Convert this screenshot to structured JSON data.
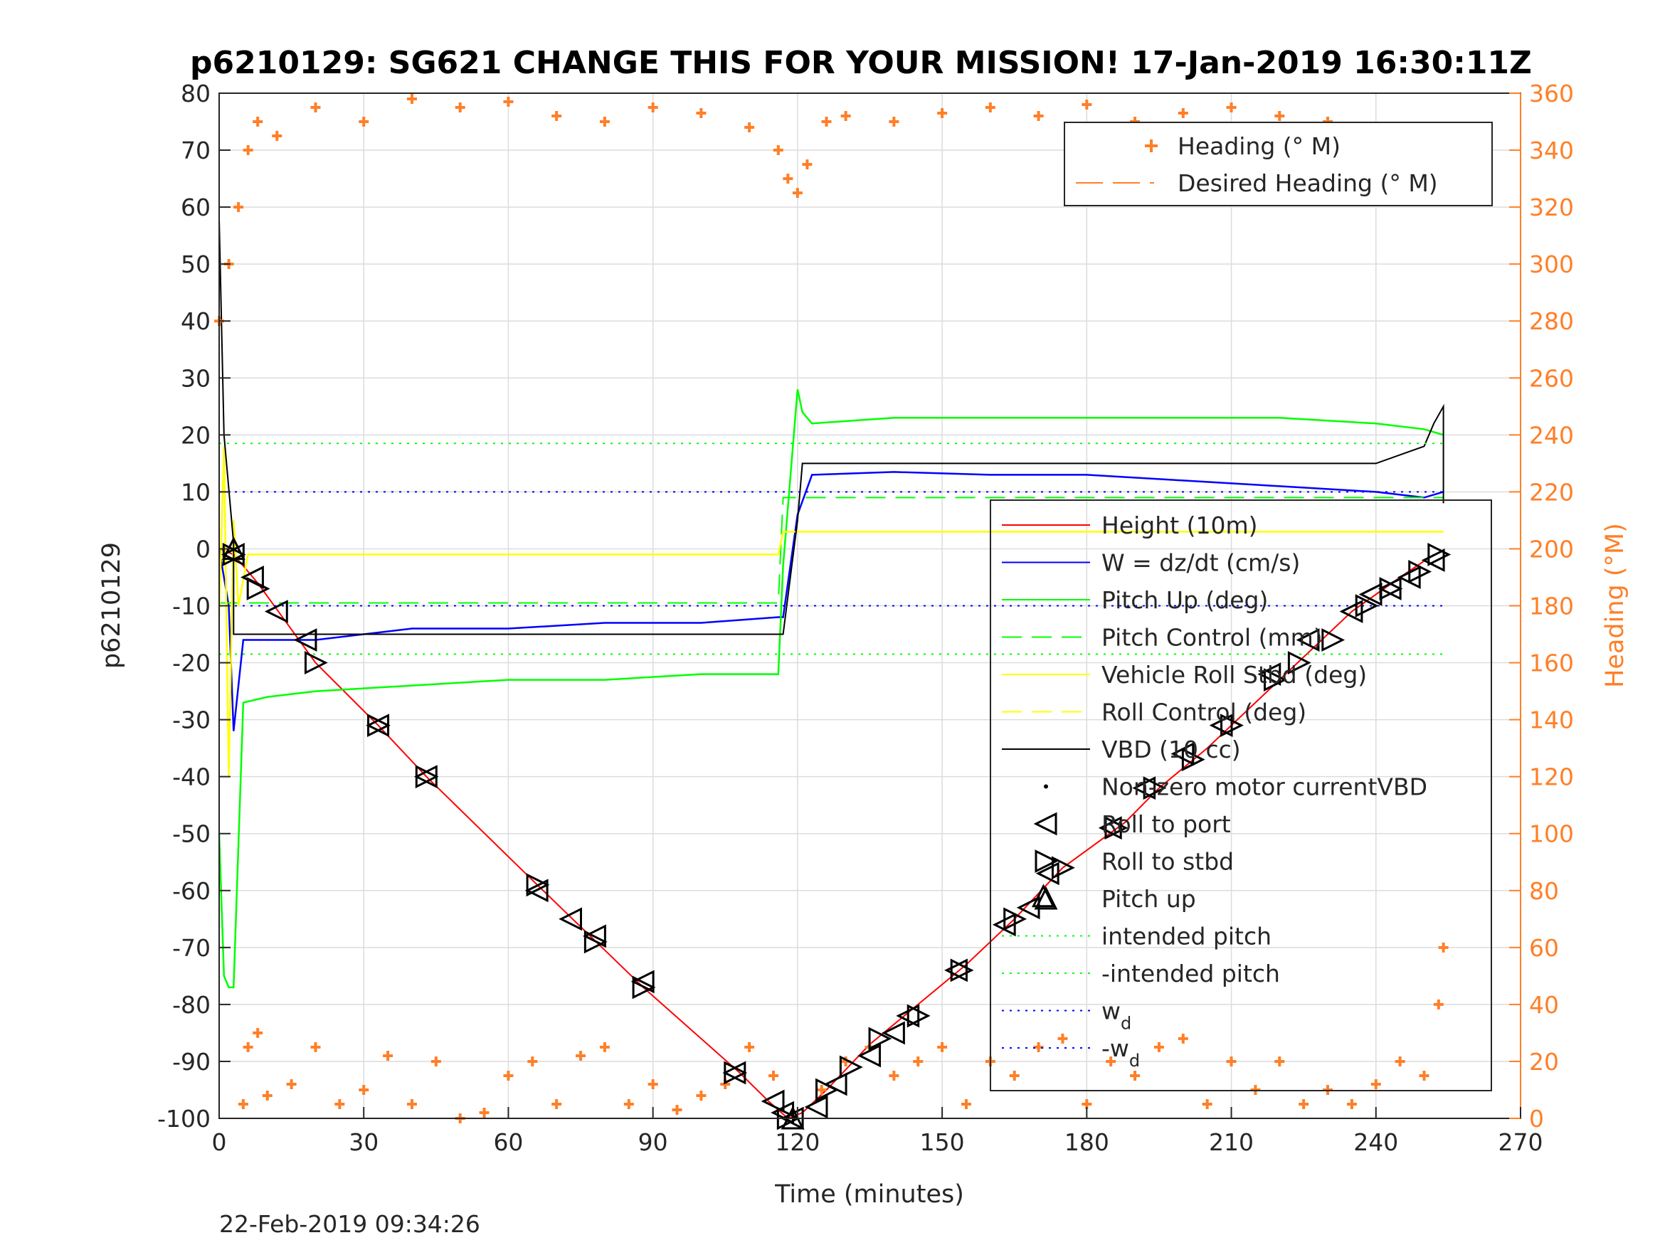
{
  "title": "p6210129: SG621 CHANGE THIS FOR YOUR MISSION! 17-Jan-2019 16:30:11Z",
  "footer_timestamp": "22-Feb-2019 09:34:26",
  "chart_data": {
    "type": "line",
    "xlabel": "Time (minutes)",
    "ylabel_left": "p6210129",
    "ylabel_right": "Heading (°M)",
    "xlim": [
      0,
      270
    ],
    "ylim_left": [
      -100,
      80
    ],
    "ylim_right": [
      0,
      360
    ],
    "x_ticks": [
      "0",
      "30",
      "60",
      "90",
      "120",
      "150",
      "180",
      "210",
      "240",
      "270"
    ],
    "y_ticks_left": [
      "-100",
      "-90",
      "-80",
      "-70",
      "-60",
      "-50",
      "-40",
      "-30",
      "-20",
      "-10",
      "0",
      "10",
      "20",
      "30",
      "40",
      "50",
      "60",
      "70",
      "80"
    ],
    "y_ticks_right": [
      "0",
      "20",
      "40",
      "60",
      "80",
      "100",
      "120",
      "140",
      "160",
      "180",
      "200",
      "220",
      "240",
      "260",
      "280",
      "300",
      "320",
      "340",
      "360"
    ],
    "grid": true,
    "colors": {
      "height": "#ff0000",
      "w": "#0000ff",
      "pitch": "#00ff00",
      "roll": "#ffff00",
      "vbd": "#000000",
      "heading": "#ff7f27",
      "axis": "#262626"
    },
    "legend_top": {
      "placement": "top-right",
      "entries": [
        "Heading (° M)",
        "Desired Heading (° M)"
      ]
    },
    "legend_main": {
      "placement": "right",
      "entries": [
        "Height (10m)",
        "W = dz/dt (cm/s)",
        "Pitch Up (deg)",
        "Pitch Control (mm)",
        "Vehicle Roll Stbd (deg)",
        "Roll Control (deg)",
        "VBD (10 cc)",
        "Non-zero motor currentVBD",
        "Roll to port",
        "Roll to stbd",
        "Pitch up",
        "intended pitch",
        "-intended pitch",
        "w",
        "-w"
      ],
      "subscript": "d"
    },
    "series": [
      {
        "name": "Height (10m)",
        "axis": "left",
        "x": [
          0,
          3,
          8,
          20,
          33,
          43,
          66,
          77,
          88,
          108,
          114,
          118,
          121,
          126,
          135,
          145,
          155,
          165,
          175,
          188,
          195,
          205,
          215,
          225,
          235,
          245,
          252
        ],
        "y": [
          0,
          -1,
          -6,
          -20,
          -31,
          -40,
          -59,
          -68,
          -77,
          -92,
          -97,
          -100,
          -99,
          -95,
          -87,
          -80,
          -73,
          -65,
          -56,
          -48,
          -42,
          -35,
          -27,
          -19,
          -11,
          -5,
          -1
        ]
      },
      {
        "name": "W = dz/dt (cm/s)",
        "axis": "left",
        "x": [
          0,
          2,
          3,
          5,
          10,
          20,
          40,
          60,
          80,
          100,
          116,
          117,
          120,
          123,
          140,
          160,
          180,
          200,
          220,
          240,
          250,
          254
        ],
        "y": [
          0,
          -10,
          -32,
          -16,
          -16,
          -16,
          -14,
          -14,
          -13,
          -13,
          -12,
          -12,
          6,
          13,
          13.5,
          13,
          13,
          12,
          11,
          10,
          9,
          10
        ]
      },
      {
        "name": "Pitch Up (deg)",
        "axis": "left",
        "x": [
          0,
          1,
          2,
          3,
          5,
          10,
          20,
          40,
          60,
          80,
          100,
          116,
          117,
          120,
          121,
          123,
          140,
          160,
          180,
          200,
          220,
          240,
          250,
          254
        ],
        "y": [
          -50,
          -75,
          -77,
          -77,
          -27,
          -26,
          -25,
          -24,
          -23,
          -23,
          -22,
          -22,
          -3,
          28,
          24,
          22,
          23,
          23,
          23,
          23,
          23,
          22,
          21,
          20
        ]
      },
      {
        "name": "Pitch Control (mm)",
        "axis": "left",
        "x": [
          0,
          116,
          117,
          254
        ],
        "y": [
          -9.5,
          -9.5,
          9,
          9
        ]
      },
      {
        "name": "Vehicle Roll Stbd (deg)",
        "axis": "left",
        "x": [
          0,
          1,
          2,
          3,
          4,
          6,
          10,
          20,
          40,
          60,
          80,
          100,
          116,
          117,
          120,
          130,
          150,
          170,
          190,
          210,
          230,
          240,
          250,
          254
        ],
        "y": [
          -12,
          18,
          -40,
          5,
          -10,
          -1,
          -1,
          -1,
          -1,
          -1,
          -1,
          -1,
          -1,
          3,
          3,
          3,
          3,
          3,
          3,
          3,
          3,
          3,
          3,
          3
        ]
      },
      {
        "name": "VBD (10 cc)",
        "axis": "left",
        "x": [
          0,
          1,
          3,
          3,
          116,
          117,
          120,
          121,
          240,
          250,
          252,
          254,
          254
        ],
        "y": [
          58,
          20,
          1,
          -15,
          -15,
          -15,
          5,
          15,
          15,
          18,
          22,
          25,
          8
        ]
      },
      {
        "name": "intended pitch",
        "axis": "left",
        "x": [
          0,
          254
        ],
        "y": [
          18.5,
          18.5
        ]
      },
      {
        "name": "-intended pitch",
        "axis": "left",
        "x": [
          0,
          254
        ],
        "y": [
          -18.5,
          -18.5
        ]
      },
      {
        "name": "w",
        "axis": "left",
        "x": [
          0,
          254
        ],
        "y": [
          10,
          10
        ]
      },
      {
        "name": "-w",
        "axis": "left",
        "x": [
          0,
          254
        ],
        "y": [
          -10,
          -10
        ]
      },
      {
        "name": "Heading (° M)",
        "axis": "right",
        "x": [
          0,
          2,
          4,
          6,
          8,
          12,
          20,
          30,
          40,
          50,
          60,
          70,
          80,
          90,
          100,
          110,
          116,
          118,
          120,
          122,
          126,
          130,
          140,
          150,
          160,
          170,
          180,
          190,
          200,
          210,
          220,
          230,
          240,
          245,
          250,
          252,
          254
        ],
        "y": [
          280,
          300,
          320,
          340,
          350,
          345,
          355,
          350,
          358,
          355,
          357,
          352,
          350,
          355,
          353,
          348,
          340,
          330,
          325,
          335,
          350,
          352,
          350,
          353,
          355,
          352,
          356,
          350,
          353,
          355,
          352,
          350,
          348,
          345,
          340,
          335,
          340
        ]
      },
      {
        "name": "Heading (° M)",
        "axis": "right",
        "x": [
          5,
          6,
          8,
          10,
          15,
          20,
          25,
          30,
          35,
          40,
          45,
          50,
          55,
          60,
          65,
          70,
          75,
          80,
          85,
          90,
          95,
          100,
          105,
          110,
          115,
          125,
          130,
          135,
          140,
          145,
          150,
          155,
          160,
          165,
          170,
          175,
          180,
          185,
          190,
          195,
          200,
          205,
          210,
          215,
          220,
          225,
          230,
          235,
          240,
          245,
          250,
          253,
          254
        ],
        "y": [
          5,
          25,
          30,
          8,
          12,
          25,
          5,
          10,
          22,
          5,
          20,
          0,
          2,
          15,
          20,
          5,
          22,
          25,
          5,
          12,
          3,
          8,
          12,
          25,
          15,
          10,
          20,
          25,
          15,
          20,
          25,
          5,
          20,
          15,
          25,
          28,
          5,
          20,
          15,
          25,
          28,
          5,
          20,
          10,
          20,
          5,
          10,
          5,
          12,
          20,
          15,
          40,
          60
        ]
      }
    ],
    "markers": {
      "roll_to_port": {
        "x": [
          3,
          7,
          12,
          18,
          33,
          43,
          66,
          73,
          78,
          88,
          107,
          115,
          117,
          119,
          124,
          128,
          135,
          140,
          143,
          153,
          163,
          168,
          172,
          185,
          192,
          200,
          208,
          218,
          226,
          235,
          239,
          243,
          247,
          252
        ],
        "y": [
          -1,
          -5,
          -11,
          -16,
          -31,
          -40,
          -60,
          -65,
          -68,
          -76,
          -92,
          -97,
          -99,
          -100,
          -98,
          -94,
          -89,
          -85,
          -82,
          -74,
          -66,
          -63,
          -57,
          -49,
          -42,
          -36,
          -31,
          -22,
          -16,
          -11,
          -8,
          -7,
          -5,
          -2
        ]
      },
      "roll_to_stbd": {
        "x": [
          3,
          8,
          20,
          33,
          43,
          66,
          78,
          88,
          107,
          118,
          126,
          131,
          137,
          145,
          154,
          165,
          175,
          186,
          194,
          202,
          210,
          219,
          224,
          231,
          238,
          243,
          249,
          253
        ],
        "y": [
          -1,
          -7,
          -20,
          -31,
          -40,
          -59,
          -69,
          -77,
          -92,
          -100,
          -95,
          -91,
          -86,
          -82,
          -74,
          -65,
          -56,
          -49,
          -42,
          -37,
          -31,
          -23,
          -20,
          -16,
          -10,
          -7,
          -4,
          -1
        ]
      },
      "pitch_up": {
        "x": [
          3,
          119,
          171
        ],
        "y": [
          0,
          -100,
          -61
        ]
      }
    }
  }
}
